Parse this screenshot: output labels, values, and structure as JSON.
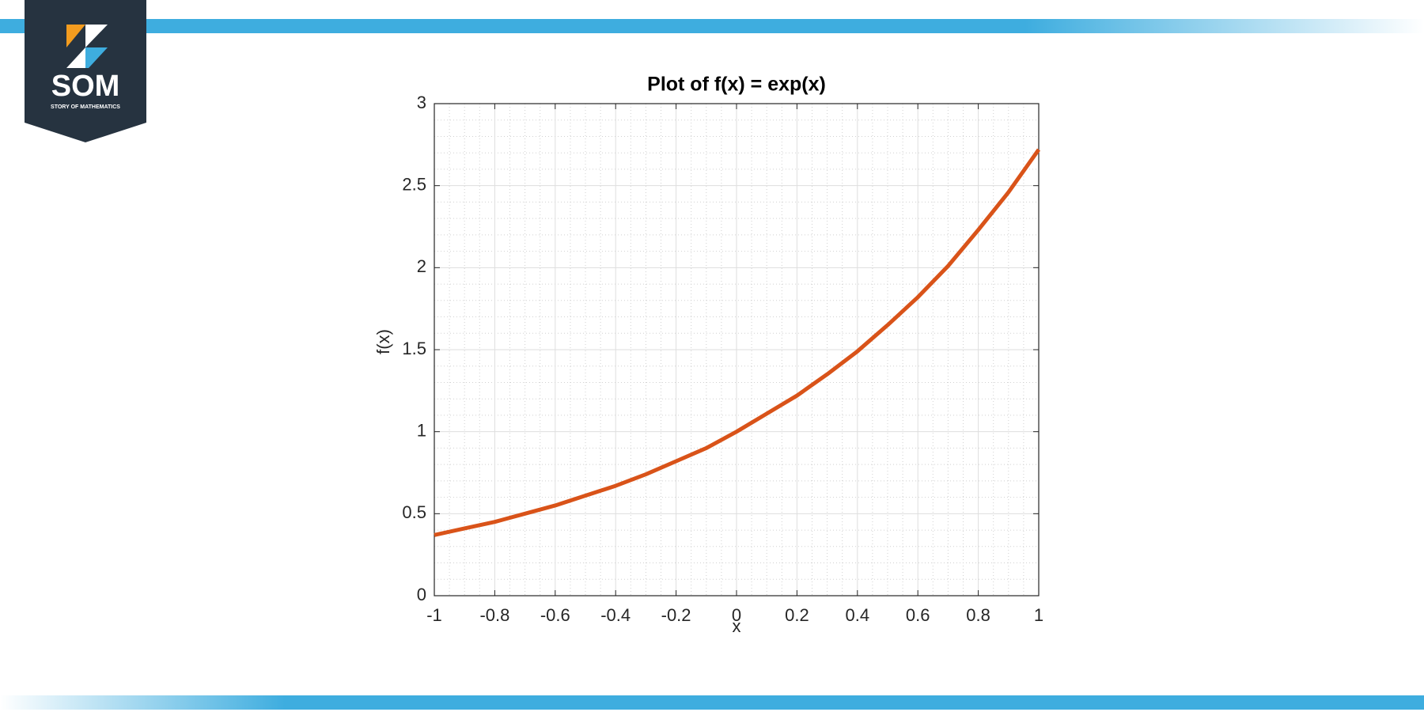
{
  "logo": {
    "text": "SOM",
    "tagline": "STORY OF MATHEMATICS"
  },
  "chart_data": {
    "type": "line",
    "title": "Plot of f(x) = exp(x)",
    "x_label": "x",
    "y_label": "f(x)",
    "x": [
      -1,
      -0.9,
      -0.8,
      -0.7,
      -0.6,
      -0.5,
      -0.4,
      -0.3,
      -0.2,
      -0.1,
      0,
      0.1,
      0.2,
      0.3,
      0.4,
      0.5,
      0.6,
      0.7,
      0.8,
      0.9,
      1
    ],
    "values": [
      0.37,
      0.41,
      0.45,
      0.5,
      0.55,
      0.61,
      0.67,
      0.74,
      0.82,
      0.9,
      1.0,
      1.11,
      1.22,
      1.35,
      1.49,
      1.65,
      1.82,
      2.01,
      2.23,
      2.46,
      2.72
    ],
    "color": "#d95319",
    "xlim": [
      -1,
      1
    ],
    "xticks": [
      -1,
      -0.8,
      -0.6,
      -0.4,
      -0.2,
      0,
      0.2,
      0.4,
      0.6,
      0.8,
      1
    ],
    "ylim": [
      0,
      3
    ],
    "yticks": [
      0,
      0.5,
      1,
      1.5,
      2,
      2.5,
      3
    ],
    "grid": true,
    "minor_grid": true
  }
}
